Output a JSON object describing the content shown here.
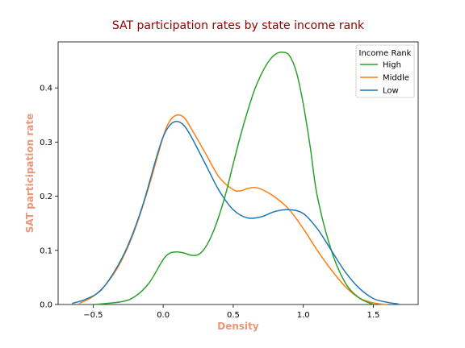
{
  "chart_data": {
    "type": "line",
    "title": "SAT participation rates by state income rank",
    "xlabel": "Density",
    "ylabel": "SAT participation rate",
    "xlim": [
      -0.75,
      1.82
    ],
    "ylim": [
      0,
      0.485
    ],
    "xticks": [
      -0.5,
      0.0,
      0.5,
      1.0,
      1.5
    ],
    "xtick_labels": [
      "−0.5",
      "0.0",
      "0.5",
      "1.0",
      "1.5"
    ],
    "yticks": [
      0.0,
      0.1,
      0.2,
      0.3,
      0.4
    ],
    "ytick_labels": [
      "0.0",
      "0.1",
      "0.2",
      "0.3",
      "0.4"
    ],
    "grid": false,
    "legend": {
      "title": "Income Rank",
      "placement": "top-right"
    },
    "title_color": "#8b0000",
    "label_color": "#e9967a",
    "series": [
      {
        "name": "High",
        "color": "#2ca02c",
        "points": [
          [
            -0.5,
            0.0
          ],
          [
            -0.3,
            0.005
          ],
          [
            -0.2,
            0.015
          ],
          [
            -0.1,
            0.04
          ],
          [
            0.0,
            0.083
          ],
          [
            0.05,
            0.095
          ],
          [
            0.1,
            0.097
          ],
          [
            0.15,
            0.095
          ],
          [
            0.2,
            0.091
          ],
          [
            0.25,
            0.092
          ],
          [
            0.3,
            0.105
          ],
          [
            0.35,
            0.13
          ],
          [
            0.4,
            0.165
          ],
          [
            0.45,
            0.208
          ],
          [
            0.5,
            0.26
          ],
          [
            0.55,
            0.31
          ],
          [
            0.6,
            0.355
          ],
          [
            0.65,
            0.395
          ],
          [
            0.7,
            0.425
          ],
          [
            0.75,
            0.448
          ],
          [
            0.8,
            0.462
          ],
          [
            0.85,
            0.466
          ],
          [
            0.9,
            0.46
          ],
          [
            0.95,
            0.43
          ],
          [
            1.0,
            0.37
          ],
          [
            1.05,
            0.29
          ],
          [
            1.1,
            0.2
          ],
          [
            1.2,
            0.1
          ],
          [
            1.3,
            0.04
          ],
          [
            1.4,
            0.012
          ],
          [
            1.5,
            0.0
          ]
        ]
      },
      {
        "name": "Middle",
        "color": "#ff7f0e",
        "points": [
          [
            -0.6,
            0.002
          ],
          [
            -0.5,
            0.015
          ],
          [
            -0.4,
            0.04
          ],
          [
            -0.3,
            0.08
          ],
          [
            -0.2,
            0.14
          ],
          [
            -0.1,
            0.22
          ],
          [
            0.0,
            0.31
          ],
          [
            0.05,
            0.34
          ],
          [
            0.1,
            0.35
          ],
          [
            0.15,
            0.345
          ],
          [
            0.2,
            0.325
          ],
          [
            0.3,
            0.28
          ],
          [
            0.4,
            0.235
          ],
          [
            0.5,
            0.212
          ],
          [
            0.55,
            0.21
          ],
          [
            0.6,
            0.214
          ],
          [
            0.65,
            0.216
          ],
          [
            0.7,
            0.213
          ],
          [
            0.8,
            0.198
          ],
          [
            0.9,
            0.175
          ],
          [
            1.0,
            0.14
          ],
          [
            1.1,
            0.1
          ],
          [
            1.2,
            0.064
          ],
          [
            1.3,
            0.033
          ],
          [
            1.4,
            0.012
          ],
          [
            1.5,
            0.003
          ],
          [
            1.6,
            0.0
          ]
        ]
      },
      {
        "name": "Low",
        "color": "#1f77b4",
        "points": [
          [
            -0.65,
            0.002
          ],
          [
            -0.55,
            0.01
          ],
          [
            -0.45,
            0.025
          ],
          [
            -0.35,
            0.06
          ],
          [
            -0.25,
            0.11
          ],
          [
            -0.15,
            0.18
          ],
          [
            -0.05,
            0.27
          ],
          [
            0.0,
            0.31
          ],
          [
            0.05,
            0.332
          ],
          [
            0.1,
            0.338
          ],
          [
            0.15,
            0.33
          ],
          [
            0.2,
            0.31
          ],
          [
            0.3,
            0.26
          ],
          [
            0.4,
            0.21
          ],
          [
            0.5,
            0.175
          ],
          [
            0.6,
            0.16
          ],
          [
            0.7,
            0.162
          ],
          [
            0.8,
            0.172
          ],
          [
            0.9,
            0.175
          ],
          [
            1.0,
            0.168
          ],
          [
            1.1,
            0.14
          ],
          [
            1.2,
            0.1
          ],
          [
            1.3,
            0.06
          ],
          [
            1.4,
            0.03
          ],
          [
            1.5,
            0.011
          ],
          [
            1.6,
            0.004
          ],
          [
            1.68,
            0.001
          ]
        ]
      }
    ]
  }
}
